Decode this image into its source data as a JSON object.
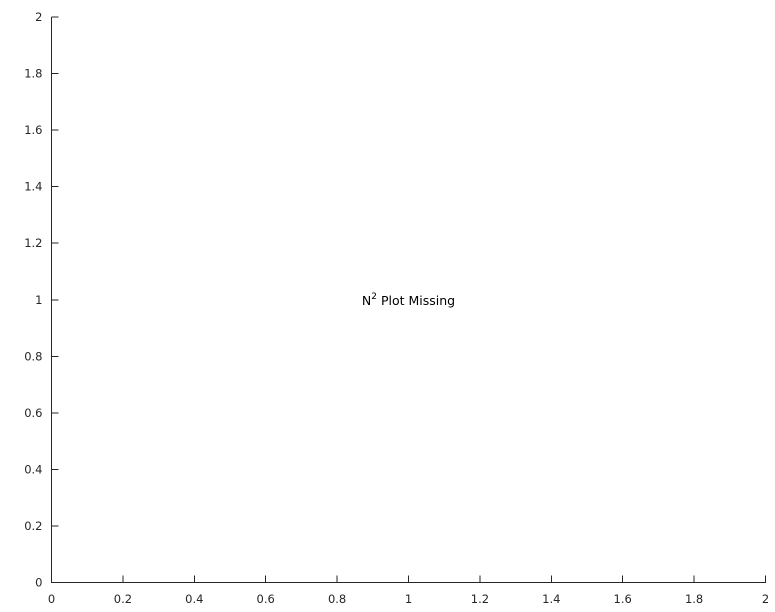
{
  "chart_data": {
    "type": "line",
    "title": "",
    "xlabel": "",
    "ylabel": "",
    "xlim": [
      0,
      2
    ],
    "ylim": [
      0,
      2
    ],
    "x_ticks": [
      {
        "value": 0,
        "label": "0"
      },
      {
        "value": 0.2,
        "label": "0.2"
      },
      {
        "value": 0.4,
        "label": "0.4"
      },
      {
        "value": 0.6,
        "label": "0.6"
      },
      {
        "value": 0.8,
        "label": "0.8"
      },
      {
        "value": 1,
        "label": "1"
      },
      {
        "value": 1.2,
        "label": "1.2"
      },
      {
        "value": 1.4,
        "label": "1.4"
      },
      {
        "value": 1.6,
        "label": "1.6"
      },
      {
        "value": 1.8,
        "label": "1.8"
      },
      {
        "value": 2,
        "label": "2"
      }
    ],
    "y_ticks": [
      {
        "value": 0,
        "label": "0"
      },
      {
        "value": 0.2,
        "label": "0.2"
      },
      {
        "value": 0.4,
        "label": "0.4"
      },
      {
        "value": 0.6,
        "label": "0.6"
      },
      {
        "value": 0.8,
        "label": "0.8"
      },
      {
        "value": 1,
        "label": "1"
      },
      {
        "value": 1.2,
        "label": "1.2"
      },
      {
        "value": 1.4,
        "label": "1.4"
      },
      {
        "value": 1.6,
        "label": "1.6"
      },
      {
        "value": 1.8,
        "label": "1.8"
      },
      {
        "value": 2,
        "label": "2"
      }
    ],
    "grid": false,
    "series": [],
    "annotation": {
      "x": 1,
      "y": 1,
      "base": "N",
      "superscript": "2",
      "rest": " Plot Missing"
    }
  }
}
